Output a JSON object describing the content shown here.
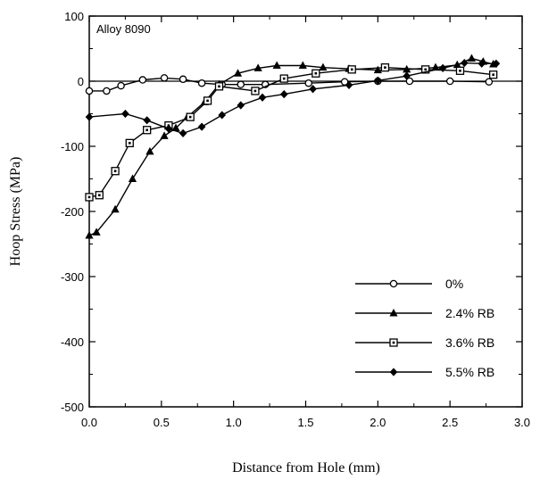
{
  "chart_data": {
    "type": "line",
    "annotation": "Alloy 8090",
    "xlabel": "Distance from Hole (mm)",
    "ylabel": "Hoop Stress (MPa)",
    "xlim": [
      0.0,
      3.0
    ],
    "ylim": [
      -500,
      100
    ],
    "x_ticks": [
      {
        "value": 0.0,
        "label": "0.0"
      },
      {
        "value": 0.5,
        "label": "0.5"
      },
      {
        "value": 1.0,
        "label": "1.0"
      },
      {
        "value": 1.5,
        "label": "1.5"
      },
      {
        "value": 2.0,
        "label": "2.0"
      },
      {
        "value": 2.5,
        "label": "2.5"
      },
      {
        "value": 3.0,
        "label": "3.0"
      }
    ],
    "y_ticks": [
      {
        "value": 100,
        "label": "100"
      },
      {
        "value": 0,
        "label": "0"
      },
      {
        "value": -100,
        "label": "-100"
      },
      {
        "value": -200,
        "label": "-200"
      },
      {
        "value": -300,
        "label": "-300"
      },
      {
        "value": -400,
        "label": "-400"
      },
      {
        "value": -500,
        "label": "-500"
      }
    ],
    "zero_line": true,
    "legend_position": "bottom-right",
    "series": [
      {
        "name": "0%",
        "marker": "open-circle",
        "points": [
          [
            0.0,
            -15
          ],
          [
            0.12,
            -15
          ],
          [
            0.22,
            -7
          ],
          [
            0.37,
            2
          ],
          [
            0.52,
            5
          ],
          [
            0.65,
            3
          ],
          [
            0.78,
            -3
          ],
          [
            0.92,
            -5
          ],
          [
            1.05,
            -5
          ],
          [
            1.22,
            -5
          ],
          [
            1.52,
            -3
          ],
          [
            1.77,
            -1
          ],
          [
            2.0,
            0
          ],
          [
            2.22,
            0
          ],
          [
            2.5,
            0
          ],
          [
            2.77,
            -1
          ]
        ]
      },
      {
        "name": "2.4% RB",
        "marker": "filled-triangle",
        "points": [
          [
            0.0,
            -237
          ],
          [
            0.05,
            -232
          ],
          [
            0.18,
            -197
          ],
          [
            0.3,
            -150
          ],
          [
            0.42,
            -108
          ],
          [
            0.52,
            -84
          ],
          [
            0.6,
            -72
          ],
          [
            0.68,
            -55
          ],
          [
            0.8,
            -32
          ],
          [
            0.9,
            -5
          ],
          [
            1.03,
            12
          ],
          [
            1.17,
            20
          ],
          [
            1.3,
            24
          ],
          [
            1.48,
            24
          ],
          [
            1.62,
            21
          ],
          [
            1.8,
            19
          ],
          [
            2.0,
            17
          ],
          [
            2.2,
            18
          ],
          [
            2.4,
            21
          ],
          [
            2.55,
            25
          ],
          [
            2.65,
            35
          ],
          [
            2.73,
            30
          ],
          [
            2.8,
            26
          ]
        ]
      },
      {
        "name": "3.6% RB",
        "marker": "square-dot",
        "points": [
          [
            0.0,
            -178
          ],
          [
            0.07,
            -175
          ],
          [
            0.18,
            -138
          ],
          [
            0.28,
            -95
          ],
          [
            0.4,
            -75
          ],
          [
            0.55,
            -68
          ],
          [
            0.7,
            -55
          ],
          [
            0.82,
            -30
          ],
          [
            0.9,
            -8
          ],
          [
            1.15,
            -15
          ],
          [
            1.35,
            4
          ],
          [
            1.57,
            12
          ],
          [
            1.82,
            18
          ],
          [
            2.05,
            21
          ],
          [
            2.33,
            18
          ],
          [
            2.57,
            16
          ],
          [
            2.8,
            10
          ]
        ]
      },
      {
        "name": "5.5% RB",
        "marker": "filled-diamond",
        "points": [
          [
            0.0,
            -55
          ],
          [
            0.25,
            -50
          ],
          [
            0.4,
            -60
          ],
          [
            0.55,
            -73
          ],
          [
            0.65,
            -80
          ],
          [
            0.78,
            -70
          ],
          [
            0.92,
            -52
          ],
          [
            1.05,
            -37
          ],
          [
            1.2,
            -25
          ],
          [
            1.35,
            -20
          ],
          [
            1.55,
            -12
          ],
          [
            1.8,
            -6
          ],
          [
            2.0,
            1
          ],
          [
            2.2,
            8
          ],
          [
            2.45,
            20
          ],
          [
            2.6,
            28
          ],
          [
            2.72,
            27
          ],
          [
            2.82,
            27
          ]
        ]
      }
    ]
  }
}
